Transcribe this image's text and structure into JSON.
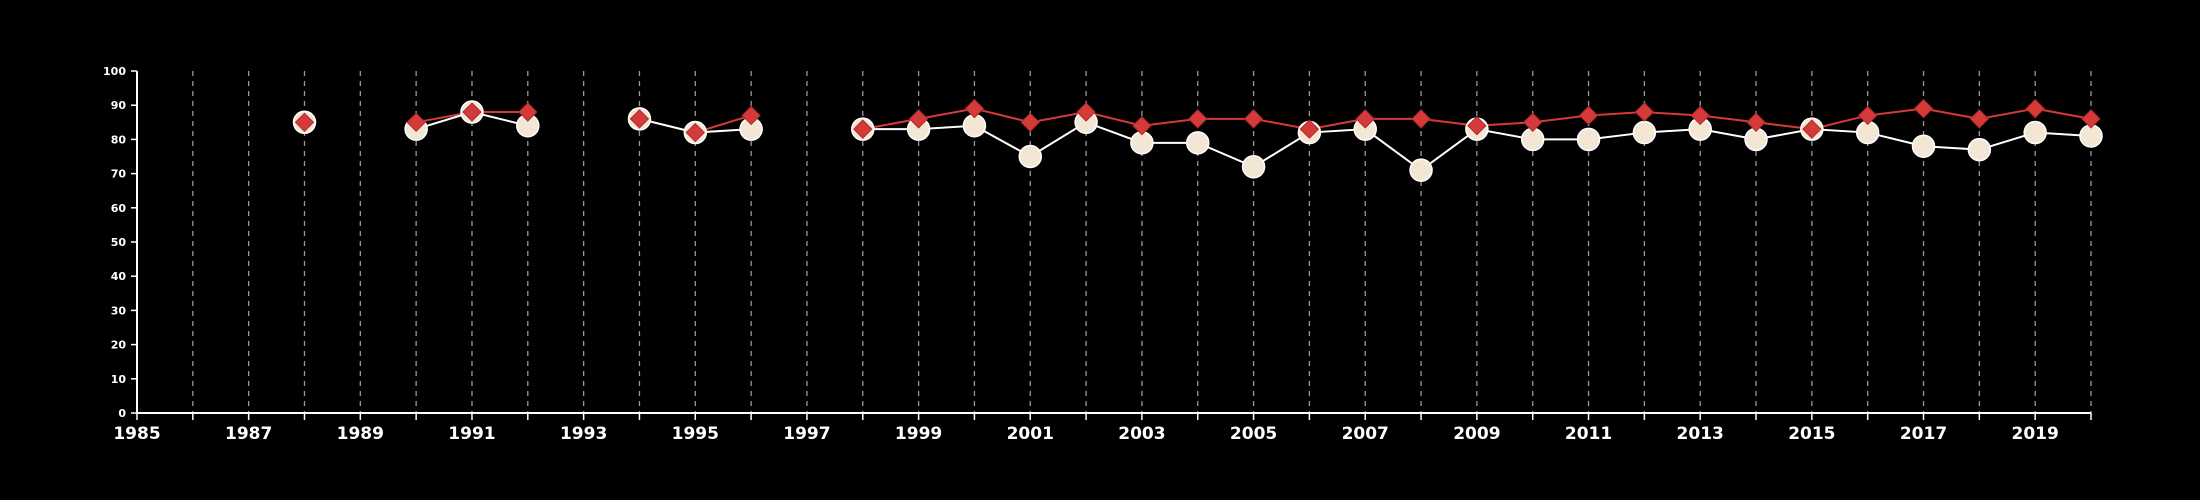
{
  "chart_data": {
    "type": "line",
    "title": "",
    "xlabel": "",
    "ylabel": "",
    "xlim": [
      1985,
      2020
    ],
    "ylim": [
      0,
      100
    ],
    "y_ticks": [
      0,
      10,
      20,
      30,
      40,
      50,
      60,
      70,
      80,
      90,
      100
    ],
    "x_tick_labels": [
      1985,
      1987,
      1989,
      1991,
      1993,
      1995,
      1997,
      1999,
      2001,
      2003,
      2005,
      2007,
      2009,
      2011,
      2013,
      2015,
      2017,
      2019
    ],
    "vertical_gridlines": "every year, dashed",
    "legend": "none",
    "series": [
      {
        "marker": "circle",
        "color": "#ffffff",
        "marker_fill": "#f3e6d4",
        "points": [
          [
            1988,
            85
          ],
          [
            1990,
            83
          ],
          [
            1991,
            88
          ],
          [
            1992,
            84
          ],
          [
            1994,
            86
          ],
          [
            1995,
            82
          ],
          [
            1996,
            83
          ],
          [
            1998,
            83
          ],
          [
            1999,
            83
          ],
          [
            2000,
            84
          ],
          [
            2001,
            75
          ],
          [
            2002,
            85
          ],
          [
            2003,
            79
          ],
          [
            2004,
            79
          ],
          [
            2005,
            72
          ],
          [
            2006,
            82
          ],
          [
            2007,
            83
          ],
          [
            2008,
            71
          ],
          [
            2009,
            83
          ],
          [
            2010,
            80
          ],
          [
            2011,
            80
          ],
          [
            2012,
            82
          ],
          [
            2013,
            83
          ],
          [
            2014,
            80
          ],
          [
            2015,
            83
          ],
          [
            2016,
            82
          ],
          [
            2017,
            78
          ],
          [
            2018,
            77
          ],
          [
            2019,
            82
          ],
          [
            2020,
            81
          ]
        ]
      },
      {
        "marker": "diamond",
        "color": "#d43a3a",
        "marker_fill": "#d43a3a",
        "points": [
          [
            1988,
            85
          ],
          [
            1990,
            85
          ],
          [
            1991,
            88
          ],
          [
            1992,
            88
          ],
          [
            1994,
            86
          ],
          [
            1995,
            82
          ],
          [
            1996,
            87
          ],
          [
            1998,
            83
          ],
          [
            1999,
            86
          ],
          [
            2000,
            89
          ],
          [
            2001,
            85
          ],
          [
            2002,
            88
          ],
          [
            2003,
            84
          ],
          [
            2004,
            86
          ],
          [
            2005,
            86
          ],
          [
            2006,
            83
          ],
          [
            2007,
            86
          ],
          [
            2008,
            86
          ],
          [
            2009,
            84
          ],
          [
            2010,
            85
          ],
          [
            2011,
            87
          ],
          [
            2012,
            88
          ],
          [
            2013,
            87
          ],
          [
            2014,
            85
          ],
          [
            2015,
            83
          ],
          [
            2016,
            87
          ],
          [
            2017,
            89
          ],
          [
            2018,
            86
          ],
          [
            2019,
            89
          ],
          [
            2020,
            86
          ]
        ]
      }
    ]
  }
}
